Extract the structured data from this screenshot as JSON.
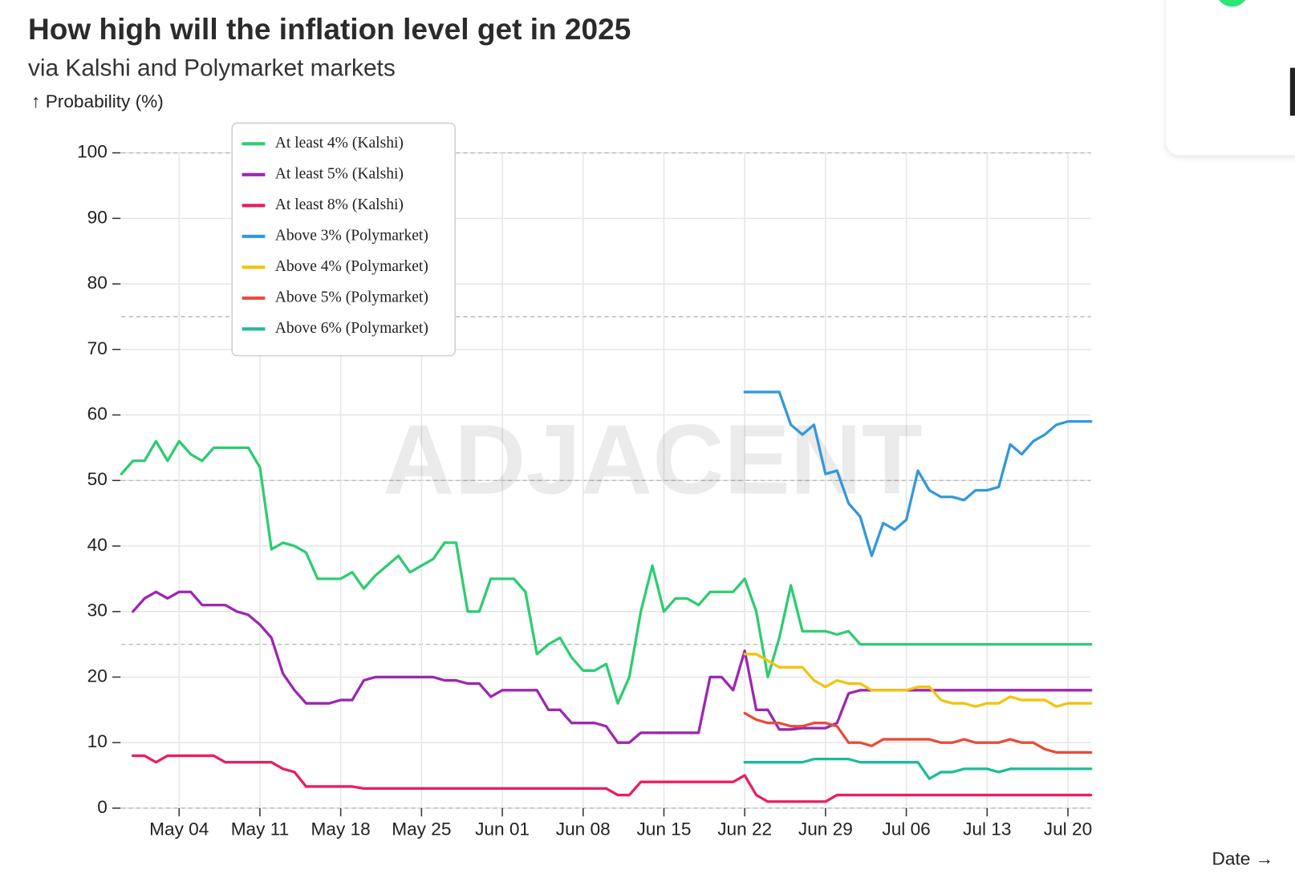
{
  "chart_data": {
    "type": "line",
    "title": "How high will the inflation level get in 2025",
    "subtitle": "via Kalshi and Polymarket markets",
    "y_label": "↑ Probability (%)",
    "x_label": "Date →",
    "watermark": "ADJACENT",
    "categories": [
      "Apr 29",
      "Apr 30",
      "May 01",
      "May 02",
      "May 03",
      "May 04",
      "May 05",
      "May 06",
      "May 07",
      "May 08",
      "May 09",
      "May 10",
      "May 11",
      "May 12",
      "May 13",
      "May 14",
      "May 15",
      "May 16",
      "May 17",
      "May 18",
      "May 19",
      "May 20",
      "May 21",
      "May 22",
      "May 23",
      "May 24",
      "May 25",
      "May 26",
      "May 27",
      "May 28",
      "May 29",
      "May 30",
      "May 31",
      "Jun 01",
      "Jun 02",
      "Jun 03",
      "Jun 04",
      "Jun 05",
      "Jun 06",
      "Jun 07",
      "Jun 08",
      "Jun 09",
      "Jun 10",
      "Jun 11",
      "Jun 12",
      "Jun 13",
      "Jun 14",
      "Jun 15",
      "Jun 16",
      "Jun 17",
      "Jun 18",
      "Jun 19",
      "Jun 20",
      "Jun 21",
      "Jun 22",
      "Jun 23",
      "Jun 24",
      "Jun 25",
      "Jun 26",
      "Jun 27",
      "Jun 28",
      "Jun 29",
      "Jun 30",
      "Jul 01",
      "Jul 02",
      "Jul 03",
      "Jul 04",
      "Jul 05",
      "Jul 06",
      "Jul 07",
      "Jul 08",
      "Jul 09",
      "Jul 10",
      "Jul 11",
      "Jul 12",
      "Jul 13",
      "Jul 14",
      "Jul 15",
      "Jul 16",
      "Jul 17",
      "Jul 18",
      "Jul 19",
      "Jul 20",
      "Jul 21",
      "Jul 22"
    ],
    "xticks": [
      "May 04",
      "May 11",
      "May 18",
      "May 25",
      "Jun 01",
      "Jun 08",
      "Jun 15",
      "Jun 22",
      "Jun 29",
      "Jul 06",
      "Jul 13",
      "Jul 20"
    ],
    "ylim": [
      0,
      100
    ],
    "yticks": [
      0,
      10,
      20,
      30,
      40,
      50,
      60,
      70,
      80,
      90,
      100
    ],
    "reference_lines": [
      0,
      25,
      50,
      75,
      100
    ],
    "grid": true,
    "legend": "top-left",
    "series": [
      {
        "name": "At least 4% (Kalshi)",
        "color": "#2ecc71",
        "values": [
          51,
          53,
          53,
          56,
          53,
          56,
          54,
          53,
          55,
          55,
          55,
          55,
          52,
          39.5,
          40.5,
          40,
          39,
          35,
          35,
          35,
          36,
          33.5,
          35.5,
          37,
          38.5,
          36,
          37,
          38,
          40.5,
          40.5,
          30,
          30,
          35,
          35,
          35,
          33,
          23.5,
          25,
          26,
          23,
          21,
          21,
          22,
          16,
          20,
          30,
          37,
          30,
          32,
          32,
          31,
          33,
          33,
          33,
          35,
          30,
          20,
          26,
          34,
          27,
          27,
          27,
          26.5,
          27,
          25,
          25,
          25,
          25,
          25,
          25,
          25,
          25,
          25,
          25,
          25,
          25,
          25,
          25,
          25,
          25,
          25,
          25,
          25,
          25,
          25
        ]
      },
      {
        "name": "At least 5% (Kalshi)",
        "color": "#9c27b0",
        "values": [
          null,
          30,
          32,
          33,
          32,
          33,
          33,
          31,
          31,
          31,
          30,
          29.5,
          28,
          26,
          20.5,
          18,
          16,
          16,
          16,
          16.5,
          16.5,
          19.5,
          20,
          20,
          20,
          20,
          20,
          20,
          19.5,
          19.5,
          19,
          19,
          17,
          18,
          18,
          18,
          18,
          15,
          15,
          13,
          13,
          13,
          12.5,
          10,
          10,
          11.5,
          11.5,
          11.5,
          11.5,
          11.5,
          11.5,
          20,
          20,
          18,
          24,
          15,
          15,
          12,
          12,
          12.2,
          12.2,
          12.2,
          13,
          17.5,
          18,
          18,
          18,
          18,
          18,
          18,
          18,
          18,
          18,
          18,
          18,
          18,
          18,
          18,
          18,
          18,
          18,
          18,
          18,
          18,
          18
        ]
      },
      {
        "name": "At least 8% (Kalshi)",
        "color": "#e91e63",
        "values": [
          null,
          8,
          8,
          7,
          8,
          8,
          8,
          8,
          8,
          7,
          7,
          7,
          7,
          7,
          6,
          5.5,
          3.3,
          3.3,
          3.3,
          3.3,
          3.3,
          3,
          3,
          3,
          3,
          3,
          3,
          3,
          3,
          3,
          3,
          3,
          3,
          3,
          3,
          3,
          3,
          3,
          3,
          3,
          3,
          3,
          3,
          2,
          2,
          4,
          4,
          4,
          4,
          4,
          4,
          4,
          4,
          4,
          5,
          2,
          1,
          1,
          1,
          1,
          1,
          1,
          2,
          2,
          2,
          2,
          2,
          2,
          2,
          2,
          2,
          2,
          2,
          2,
          2,
          2,
          2,
          2,
          2,
          2,
          2,
          2,
          2,
          2,
          2
        ]
      },
      {
        "name": "Above 3% (Polymarket)",
        "color": "#3498db",
        "values": [
          null,
          null,
          null,
          null,
          null,
          null,
          null,
          null,
          null,
          null,
          null,
          null,
          null,
          null,
          null,
          null,
          null,
          null,
          null,
          null,
          null,
          null,
          null,
          null,
          null,
          null,
          null,
          null,
          null,
          null,
          null,
          null,
          null,
          null,
          null,
          null,
          null,
          null,
          null,
          null,
          null,
          null,
          null,
          null,
          null,
          null,
          null,
          null,
          null,
          null,
          null,
          null,
          null,
          null,
          63.5,
          63.5,
          63.5,
          63.5,
          58.5,
          57,
          58.5,
          51,
          51.5,
          46.5,
          44.5,
          38.5,
          43.5,
          42.5,
          44,
          51.5,
          48.5,
          47.5,
          47.5,
          47,
          48.5,
          48.5,
          49,
          55.5,
          54,
          56,
          57,
          58.5,
          59,
          59,
          59
        ]
      },
      {
        "name": "Above 4% (Polymarket)",
        "color": "#f1c40f",
        "values": [
          null,
          null,
          null,
          null,
          null,
          null,
          null,
          null,
          null,
          null,
          null,
          null,
          null,
          null,
          null,
          null,
          null,
          null,
          null,
          null,
          null,
          null,
          null,
          null,
          null,
          null,
          null,
          null,
          null,
          null,
          null,
          null,
          null,
          null,
          null,
          null,
          null,
          null,
          null,
          null,
          null,
          null,
          null,
          null,
          null,
          null,
          null,
          null,
          null,
          null,
          null,
          null,
          null,
          null,
          23.5,
          23.5,
          22.5,
          21.5,
          21.5,
          21.5,
          19.5,
          18.5,
          19.5,
          19,
          19,
          18,
          18,
          18,
          18,
          18.5,
          18.5,
          16.5,
          16,
          16,
          15.5,
          16,
          16,
          17,
          16.5,
          16.5,
          16.5,
          15.5,
          16,
          16,
          16
        ]
      },
      {
        "name": "Above 5% (Polymarket)",
        "color": "#e74c3c",
        "values": [
          null,
          null,
          null,
          null,
          null,
          null,
          null,
          null,
          null,
          null,
          null,
          null,
          null,
          null,
          null,
          null,
          null,
          null,
          null,
          null,
          null,
          null,
          null,
          null,
          null,
          null,
          null,
          null,
          null,
          null,
          null,
          null,
          null,
          null,
          null,
          null,
          null,
          null,
          null,
          null,
          null,
          null,
          null,
          null,
          null,
          null,
          null,
          null,
          null,
          null,
          null,
          null,
          null,
          null,
          14.5,
          13.5,
          13,
          13,
          12.5,
          12.5,
          13,
          13,
          12.5,
          10,
          10,
          9.5,
          10.5,
          10.5,
          10.5,
          10.5,
          10.5,
          10,
          10,
          10.5,
          10,
          10,
          10,
          10.5,
          10,
          10,
          9,
          8.5,
          8.5,
          8.5,
          8.5
        ]
      },
      {
        "name": "Above 6% (Polymarket)",
        "color": "#1abc9c",
        "values": [
          null,
          null,
          null,
          null,
          null,
          null,
          null,
          null,
          null,
          null,
          null,
          null,
          null,
          null,
          null,
          null,
          null,
          null,
          null,
          null,
          null,
          null,
          null,
          null,
          null,
          null,
          null,
          null,
          null,
          null,
          null,
          null,
          null,
          null,
          null,
          null,
          null,
          null,
          null,
          null,
          null,
          null,
          null,
          null,
          null,
          null,
          null,
          null,
          null,
          null,
          null,
          null,
          null,
          null,
          7,
          7,
          7,
          7,
          7,
          7,
          7.5,
          7.5,
          7.5,
          7.5,
          7,
          7,
          7,
          7,
          7,
          7,
          4.5,
          5.5,
          5.5,
          6,
          6,
          6,
          5.5,
          6,
          6,
          6,
          6,
          6,
          6,
          6,
          6
        ]
      }
    ]
  }
}
